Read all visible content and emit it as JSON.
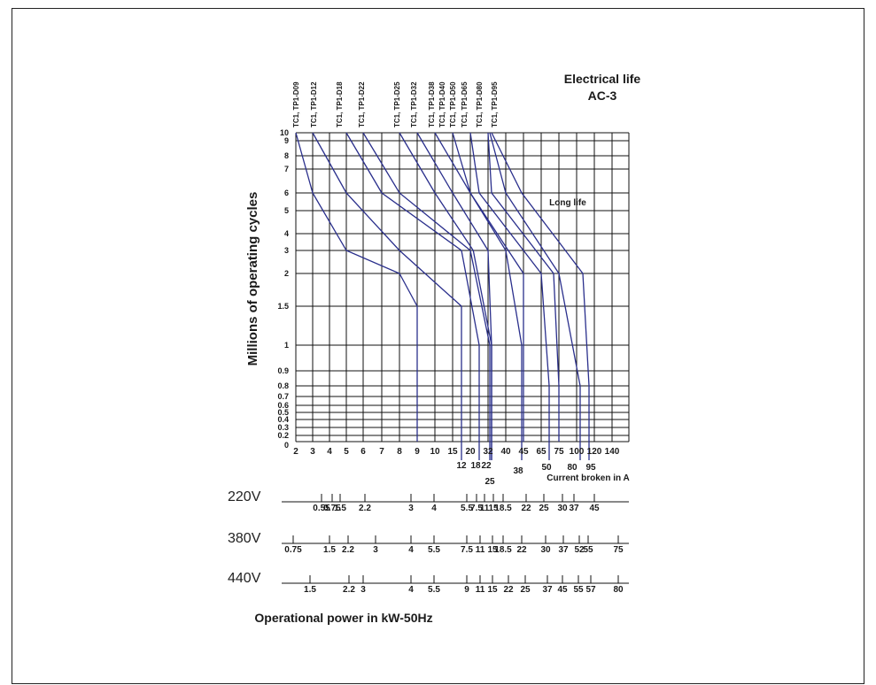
{
  "chart_data": {
    "type": "line",
    "title": "Electrical life",
    "subtitle": "AC-3",
    "xlabel": "Current broken in A",
    "ylabel": "Millions of operating cycles",
    "annotation": "Long life",
    "footer": "Operational power in kW-50Hz",
    "x_ticks": [
      "2",
      "3",
      "4",
      "5",
      "6",
      "7",
      "8",
      "9",
      "10",
      "15",
      "20",
      "32",
      "40",
      "45",
      "65",
      "75",
      "100",
      "120",
      "140"
    ],
    "x_ticks_secondary": [
      "12",
      "18",
      "22",
      "25",
      "38",
      "50",
      "80",
      "95"
    ],
    "y_ticks": [
      "10",
      "9",
      "8",
      "7",
      "6",
      "5",
      "4",
      "3",
      "2",
      "1.5",
      "1",
      "0.9",
      "0.8",
      "0.7",
      "0.6",
      "0.5",
      "0.4",
      "0.3",
      "0.2",
      "0"
    ],
    "line_color": "#2a2f8c",
    "series": [
      {
        "name": "TC1, TP1-D09",
        "points": [
          [
            2,
            10
          ],
          [
            3,
            6
          ],
          [
            5,
            3
          ],
          [
            8,
            2
          ],
          [
            9,
            1.5
          ]
        ]
      },
      {
        "name": "TC1, TP1-D12",
        "points": [
          [
            3,
            10
          ],
          [
            5,
            6
          ],
          [
            8,
            3
          ],
          [
            12,
            1.5
          ]
        ]
      },
      {
        "name": "TC1, TP1-D18",
        "points": [
          [
            5,
            10
          ],
          [
            7,
            6
          ],
          [
            12,
            3
          ],
          [
            18,
            1
          ]
        ]
      },
      {
        "name": "TC1, TP1-D22",
        "points": [
          [
            6,
            10
          ],
          [
            8,
            6
          ],
          [
            15,
            3
          ],
          [
            22,
            1
          ]
        ]
      },
      {
        "name": "TC1, TP1-D25",
        "points": [
          [
            8,
            10
          ],
          [
            10,
            6
          ],
          [
            16,
            3
          ],
          [
            25,
            1
          ]
        ]
      },
      {
        "name": "TC1, TP1-D32",
        "points": [
          [
            9,
            10
          ],
          [
            11,
            6
          ],
          [
            20,
            3
          ],
          [
            25,
            1
          ]
        ]
      },
      {
        "name": "TC1, TP1-D38",
        "points": [
          [
            10,
            10
          ],
          [
            15,
            6
          ],
          [
            32,
            3
          ],
          [
            38,
            1
          ]
        ]
      },
      {
        "name": "TC1, TP1-D40",
        "points": [
          [
            11,
            10
          ],
          [
            15,
            6
          ],
          [
            40,
            2
          ],
          [
            40,
            0.8
          ]
        ]
      },
      {
        "name": "TC1, TP1-D50",
        "points": [
          [
            15,
            10
          ],
          [
            18,
            6
          ],
          [
            45,
            2
          ],
          [
            50,
            0.8
          ]
        ]
      },
      {
        "name": "TC1, TP1-D65",
        "points": [
          [
            20,
            10
          ],
          [
            25,
            6
          ],
          [
            55,
            2
          ],
          [
            65,
            0.8
          ]
        ]
      },
      {
        "name": "TC1, TP1-D80",
        "points": [
          [
            22,
            10
          ],
          [
            32,
            6
          ],
          [
            65,
            2
          ],
          [
            80,
            0.8
          ]
        ]
      },
      {
        "name": "TC1, TP1-D95",
        "points": [
          [
            25,
            10
          ],
          [
            38,
            6
          ],
          [
            85,
            2
          ],
          [
            95,
            0.8
          ]
        ]
      }
    ],
    "voltage_scales": [
      {
        "label": "220V",
        "ticks": [
          "0.55",
          "0.75",
          "1.5",
          "2.2",
          "3",
          "4",
          "5.5",
          "7.5",
          "11",
          "15",
          "18.5",
          "22",
          "25",
          "30",
          "37",
          "45"
        ]
      },
      {
        "label": "380V",
        "ticks": [
          "0.75",
          "1.5",
          "2.2",
          "3",
          "4",
          "5.5",
          "7.5",
          "11",
          "15",
          "18.5",
          "22",
          "30",
          "37",
          "52",
          "55",
          "75"
        ]
      },
      {
        "label": "440V",
        "ticks": [
          "1.5",
          "2.2",
          "3",
          "4",
          "5.5",
          "9",
          "11",
          "15",
          "22",
          "25",
          "37",
          "45",
          "55",
          "57",
          "80"
        ]
      }
    ]
  }
}
